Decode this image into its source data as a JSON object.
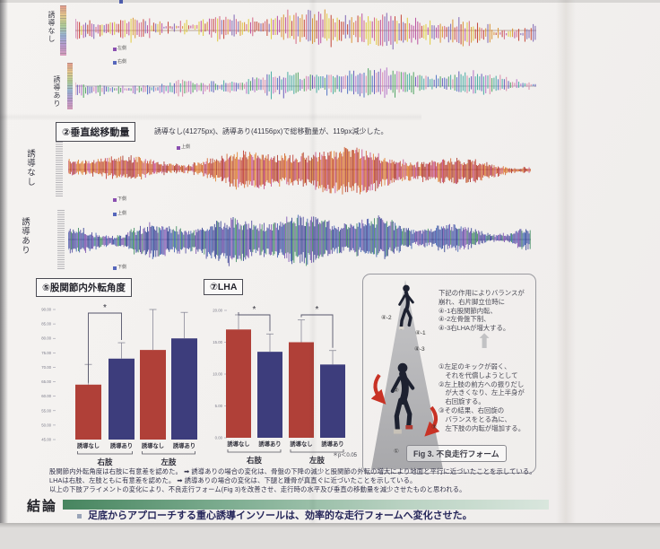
{
  "sections": {
    "top_waveforms": {
      "rows": [
        {
          "label": "誘導なし"
        },
        {
          "label": "誘導あり"
        }
      ],
      "legend": {
        "left": "左側",
        "right": "右側"
      }
    },
    "vertical_displacement": {
      "heading": "②垂直総移動量",
      "caption": "誘導なし(41275px)、誘導あり(41156px)で総移動量が、119px減少した。",
      "rows": [
        {
          "label": "誘導なし",
          "legend_top": "上側",
          "legend_bottom": "下側"
        },
        {
          "label": "誘導あり",
          "legend_top": "上側",
          "legend_bottom": "下側"
        }
      ]
    },
    "hip_chart": {
      "heading": "⑤股関節内外転角度"
    },
    "lha_chart": {
      "heading": "⑦LHA",
      "sig_note": "＊p＜0.05"
    },
    "fig3": {
      "upper_text_lines": [
        "下記の作用によりバランスが",
        "崩れ、右片脚立位時に",
        "④-1右股関節内転、",
        "④-2左骨盤下制、",
        "④-3右LHAが増大する。"
      ],
      "lower_text_lines": [
        "①左足のキックが弱く、",
        "　それを代償しようとして",
        "②左上肢の前方への振りだし",
        "　が大きくなり、左上半身が",
        "　右回旋する。",
        "③その結果、右回旋の",
        "　バランスをとる為に、",
        "　左下肢の内転が増加する。"
      ],
      "caption": "Fig 3. 不良走行フォーム",
      "runner1_labels": [
        {
          "text": "④-2"
        },
        {
          "text": "④-1"
        },
        {
          "text": "④-3"
        }
      ],
      "runner2_labels": [
        {
          "text": "②"
        },
        {
          "text": "③"
        },
        {
          "text": "①"
        }
      ]
    },
    "findings": {
      "lines": [
        "股関節内外転角度は右肢に有意差を認めた。 ➡ 誘導ありの場合の変化は、骨盤の下降の減少と股関節の外転の増大により地面と平行に近づいたことを示している。",
        "LHAは右肢、左肢ともに有意差を認めた。 ➡ 誘導ありの場合の変化は、下腿と踵骨が真直ぐに近づいたことを示している。",
        "以上の下肢アライメントの変化により、不良走行フォーム(Fig 3)を改善させ、走行時の水平及び垂直の移動量を減少させたものと思われる。"
      ]
    },
    "conclusion": {
      "heading": "結論",
      "bullet": "足底からアプローチする重心誘導インソールは、効率的な走行フォームへ変化させた。"
    }
  },
  "accent_colors": {
    "bar_red": "#b04038",
    "bar_navy": "#3d3d7c",
    "conclusion_green": "#47855f",
    "arrow_red": "#c83225"
  },
  "chart_data": [
    {
      "type": "waveform",
      "id": "lateral-guidance-off",
      "label": "誘導なし",
      "legend": [
        "左側",
        "右側"
      ],
      "style": "sparse",
      "seed": 11,
      "step": 2.3,
      "amp": 0.27,
      "palette": [
        "#c23b2e",
        "#d98f2b",
        "#e0c832",
        "#b8489a",
        "#7a5fb0",
        "#d4607e"
      ],
      "axis_color": "#93705a"
    },
    {
      "type": "waveform",
      "id": "lateral-guidance-on",
      "label": "誘導あり",
      "legend": [
        "左側",
        "右側"
      ],
      "style": "sparse",
      "seed": 22,
      "step": 2.3,
      "amp": 0.21,
      "palette": [
        "#5d55b8",
        "#4a6fc2",
        "#49a05c",
        "#b26cc4",
        "#d886a8",
        "#3fa8a0"
      ],
      "axis_color": "#7a7a8a"
    },
    {
      "type": "waveform",
      "id": "vertical-guidance-off",
      "label": "誘導なし",
      "legend": [
        "上側",
        "下側"
      ],
      "style": "dense",
      "seed": 33,
      "step": 1.15,
      "amp": 0.32,
      "palette": [
        "#bf3a2f",
        "#d2622c",
        "#c74f8c",
        "#a93226",
        "#e08030"
      ],
      "axis_color": "#8a3a30"
    },
    {
      "type": "waveform",
      "id": "vertical-guidance-on",
      "label": "誘導あり",
      "legend": [
        "上側",
        "下側"
      ],
      "style": "dense",
      "seed": 44,
      "step": 1.15,
      "amp": 0.31,
      "palette": [
        "#4f4aa0",
        "#3b5fb0",
        "#3d8a5f",
        "#7a52b0",
        "#2f3e8f"
      ],
      "axis_color": "#3c3c6e"
    },
    {
      "type": "bar",
      "id": "hip-angle",
      "title": "⑤股関節内外転角度",
      "categories": [
        "誘導なし",
        "誘導あり",
        "誘導なし",
        "誘導あり"
      ],
      "group_labels": [
        "右肢",
        "左肢"
      ],
      "values_approx": [
        64,
        73,
        76,
        80
      ],
      "errors_approx": [
        7,
        5.5,
        14,
        9
      ],
      "ylim": [
        45,
        90
      ],
      "yticks": [
        "90.00",
        "85.00",
        "80.00",
        "75.00",
        "70.00",
        "65.00",
        "60.00",
        "55.00",
        "50.00",
        "45.00"
      ],
      "bar_colors": [
        "#b04038",
        "#3d3d7c",
        "#b04038",
        "#3d3d7c"
      ],
      "significance": [
        {
          "bars": [
            0,
            1
          ],
          "label": "*"
        }
      ]
    },
    {
      "type": "bar",
      "id": "lha",
      "title": "⑦LHA",
      "categories": [
        "誘導なし",
        "誘導あり",
        "誘導なし",
        "誘導あり"
      ],
      "group_labels": [
        "右肢",
        "左肢"
      ],
      "values_approx": [
        17,
        13.5,
        15,
        11.5
      ],
      "errors_approx": [
        2.3,
        2.8,
        3.5,
        2.2
      ],
      "ylim": [
        0,
        20
      ],
      "yticks": [
        "20.00",
        "15.00",
        "10.00",
        "5.00",
        "0.00"
      ],
      "bar_colors": [
        "#b04038",
        "#3d3d7c",
        "#b04038",
        "#3d3d7c"
      ],
      "significance": [
        {
          "bars": [
            0,
            1
          ],
          "label": "*"
        },
        {
          "bars": [
            2,
            3
          ],
          "label": "*"
        }
      ],
      "sig_note": "＊p＜0.05"
    }
  ]
}
